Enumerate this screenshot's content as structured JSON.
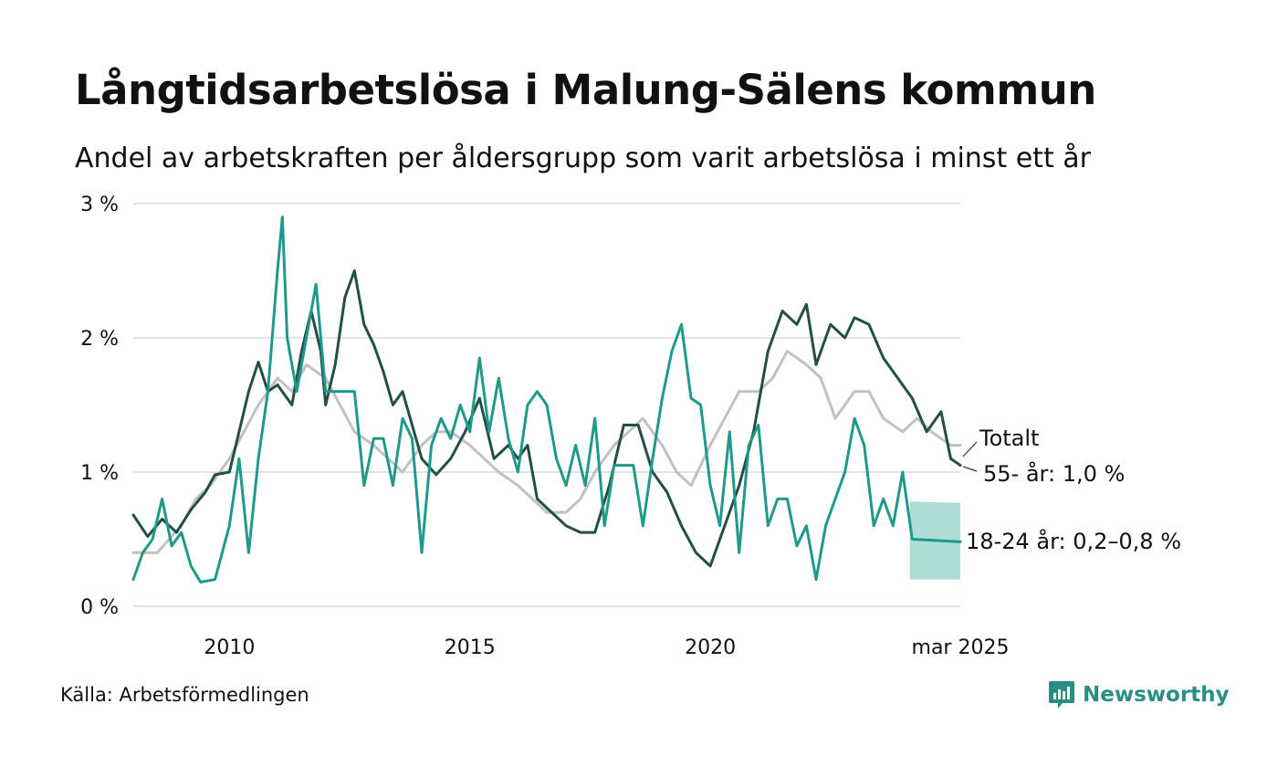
{
  "header": {
    "title": "Långtidsarbetslösa i Malung-Sälens kommun",
    "subtitle": "Andel av arbetskraften per åldersgrupp som varit arbetslösa i minst ett år"
  },
  "footer": {
    "source": "Källa: Arbetsförmedlingen",
    "brand": "Newsworthy"
  },
  "colors": {
    "totalt": "#c2bfc9",
    "age55": "#234f45",
    "age1824": "#1f9a8a",
    "band": "#9fd7cf",
    "grid": "#e3e3e3",
    "brand": "#2a8f83"
  },
  "chart_data": {
    "type": "line",
    "xlim": [
      2008.0,
      2025.2
    ],
    "ylim": [
      0,
      3
    ],
    "y_ticks": [
      0,
      1,
      2,
      3
    ],
    "y_tick_labels": [
      "0 %",
      "1 %",
      "2 %",
      "3 %"
    ],
    "x_ticks": [
      2010,
      2015,
      2020,
      2025.2
    ],
    "x_tick_labels": [
      "2010",
      "2015",
      "2020",
      "mar 2025"
    ],
    "grid": true,
    "series": [
      {
        "key": "totalt",
        "name": "Totalt",
        "points": [
          [
            2008.0,
            0.4
          ],
          [
            2008.5,
            0.4
          ],
          [
            2009.0,
            0.6
          ],
          [
            2009.3,
            0.8
          ],
          [
            2009.6,
            0.9
          ],
          [
            2010.0,
            1.1
          ],
          [
            2010.3,
            1.3
          ],
          [
            2010.6,
            1.5
          ],
          [
            2011.0,
            1.7
          ],
          [
            2011.3,
            1.6
          ],
          [
            2011.6,
            1.8
          ],
          [
            2012.0,
            1.7
          ],
          [
            2012.3,
            1.5
          ],
          [
            2012.6,
            1.3
          ],
          [
            2013.0,
            1.2
          ],
          [
            2013.3,
            1.1
          ],
          [
            2013.6,
            1.0
          ],
          [
            2014.0,
            1.2
          ],
          [
            2014.3,
            1.3
          ],
          [
            2014.6,
            1.3
          ],
          [
            2015.0,
            1.2
          ],
          [
            2015.3,
            1.1
          ],
          [
            2015.6,
            1.0
          ],
          [
            2016.0,
            0.9
          ],
          [
            2016.3,
            0.8
          ],
          [
            2016.6,
            0.7
          ],
          [
            2017.0,
            0.7
          ],
          [
            2017.3,
            0.8
          ],
          [
            2017.6,
            1.0
          ],
          [
            2018.0,
            1.2
          ],
          [
            2018.3,
            1.3
          ],
          [
            2018.6,
            1.4
          ],
          [
            2019.0,
            1.2
          ],
          [
            2019.3,
            1.0
          ],
          [
            2019.6,
            0.9
          ],
          [
            2020.0,
            1.2
          ],
          [
            2020.3,
            1.4
          ],
          [
            2020.6,
            1.6
          ],
          [
            2021.0,
            1.6
          ],
          [
            2021.3,
            1.7
          ],
          [
            2021.6,
            1.9
          ],
          [
            2022.0,
            1.8
          ],
          [
            2022.3,
            1.7
          ],
          [
            2022.6,
            1.4
          ],
          [
            2023.0,
            1.6
          ],
          [
            2023.3,
            1.6
          ],
          [
            2023.6,
            1.4
          ],
          [
            2024.0,
            1.3
          ],
          [
            2024.3,
            1.4
          ],
          [
            2024.6,
            1.3
          ],
          [
            2025.0,
            1.2
          ],
          [
            2025.2,
            1.2
          ]
        ]
      },
      {
        "key": "age55",
        "name": "55- år",
        "points": [
          [
            2008.0,
            0.68
          ],
          [
            2008.3,
            0.52
          ],
          [
            2008.6,
            0.65
          ],
          [
            2008.9,
            0.55
          ],
          [
            2009.2,
            0.72
          ],
          [
            2009.5,
            0.85
          ],
          [
            2009.7,
            0.98
          ],
          [
            2010.0,
            1.0
          ],
          [
            2010.2,
            1.3
          ],
          [
            2010.4,
            1.6
          ],
          [
            2010.6,
            1.82
          ],
          [
            2010.8,
            1.6
          ],
          [
            2011.0,
            1.65
          ],
          [
            2011.3,
            1.5
          ],
          [
            2011.5,
            1.9
          ],
          [
            2011.7,
            2.2
          ],
          [
            2011.9,
            1.9
          ],
          [
            2012.0,
            1.5
          ],
          [
            2012.2,
            1.8
          ],
          [
            2012.4,
            2.3
          ],
          [
            2012.6,
            2.5
          ],
          [
            2012.8,
            2.1
          ],
          [
            2013.0,
            1.95
          ],
          [
            2013.2,
            1.75
          ],
          [
            2013.4,
            1.5
          ],
          [
            2013.6,
            1.6
          ],
          [
            2013.8,
            1.35
          ],
          [
            2014.0,
            1.1
          ],
          [
            2014.3,
            0.98
          ],
          [
            2014.6,
            1.1
          ],
          [
            2014.9,
            1.3
          ],
          [
            2015.2,
            1.55
          ],
          [
            2015.5,
            1.1
          ],
          [
            2015.8,
            1.2
          ],
          [
            2016.0,
            1.1
          ],
          [
            2016.2,
            1.2
          ],
          [
            2016.4,
            0.8
          ],
          [
            2016.7,
            0.7
          ],
          [
            2017.0,
            0.6
          ],
          [
            2017.3,
            0.55
          ],
          [
            2017.6,
            0.55
          ],
          [
            2017.9,
            0.9
          ],
          [
            2018.2,
            1.35
          ],
          [
            2018.5,
            1.35
          ],
          [
            2018.8,
            1.0
          ],
          [
            2019.1,
            0.85
          ],
          [
            2019.4,
            0.6
          ],
          [
            2019.7,
            0.4
          ],
          [
            2020.0,
            0.3
          ],
          [
            2020.3,
            0.6
          ],
          [
            2020.6,
            0.9
          ],
          [
            2020.9,
            1.3
          ],
          [
            2021.2,
            1.9
          ],
          [
            2021.5,
            2.2
          ],
          [
            2021.8,
            2.1
          ],
          [
            2022.0,
            2.25
          ],
          [
            2022.2,
            1.8
          ],
          [
            2022.5,
            2.1
          ],
          [
            2022.8,
            2.0
          ],
          [
            2023.0,
            2.15
          ],
          [
            2023.3,
            2.1
          ],
          [
            2023.6,
            1.85
          ],
          [
            2023.9,
            1.7
          ],
          [
            2024.2,
            1.55
          ],
          [
            2024.5,
            1.3
          ],
          [
            2024.8,
            1.45
          ],
          [
            2025.0,
            1.1
          ],
          [
            2025.2,
            1.05
          ]
        ]
      },
      {
        "key": "age1824",
        "name": "18-24 år",
        "points": [
          [
            2008.0,
            0.2
          ],
          [
            2008.2,
            0.4
          ],
          [
            2008.4,
            0.5
          ],
          [
            2008.6,
            0.8
          ],
          [
            2008.8,
            0.45
          ],
          [
            2009.0,
            0.55
          ],
          [
            2009.2,
            0.3
          ],
          [
            2009.4,
            0.18
          ],
          [
            2009.7,
            0.2
          ],
          [
            2010.0,
            0.6
          ],
          [
            2010.2,
            1.1
          ],
          [
            2010.4,
            0.4
          ],
          [
            2010.6,
            1.1
          ],
          [
            2010.8,
            1.6
          ],
          [
            2011.0,
            2.5
          ],
          [
            2011.1,
            2.9
          ],
          [
            2011.2,
            2.0
          ],
          [
            2011.4,
            1.6
          ],
          [
            2011.6,
            2.0
          ],
          [
            2011.8,
            2.4
          ],
          [
            2012.0,
            1.6
          ],
          [
            2012.2,
            1.6
          ],
          [
            2012.4,
            1.6
          ],
          [
            2012.6,
            1.6
          ],
          [
            2012.8,
            0.9
          ],
          [
            2013.0,
            1.25
          ],
          [
            2013.2,
            1.25
          ],
          [
            2013.4,
            0.9
          ],
          [
            2013.6,
            1.4
          ],
          [
            2013.8,
            1.25
          ],
          [
            2014.0,
            0.4
          ],
          [
            2014.2,
            1.2
          ],
          [
            2014.4,
            1.4
          ],
          [
            2014.6,
            1.25
          ],
          [
            2014.8,
            1.5
          ],
          [
            2015.0,
            1.3
          ],
          [
            2015.2,
            1.85
          ],
          [
            2015.4,
            1.3
          ],
          [
            2015.6,
            1.7
          ],
          [
            2015.8,
            1.25
          ],
          [
            2016.0,
            1.0
          ],
          [
            2016.2,
            1.5
          ],
          [
            2016.4,
            1.6
          ],
          [
            2016.6,
            1.5
          ],
          [
            2016.8,
            1.1
          ],
          [
            2017.0,
            0.9
          ],
          [
            2017.2,
            1.2
          ],
          [
            2017.4,
            0.9
          ],
          [
            2017.6,
            1.4
          ],
          [
            2017.8,
            0.6
          ],
          [
            2018.0,
            1.05
          ],
          [
            2018.2,
            1.05
          ],
          [
            2018.4,
            1.05
          ],
          [
            2018.6,
            0.6
          ],
          [
            2018.8,
            1.1
          ],
          [
            2019.0,
            1.55
          ],
          [
            2019.2,
            1.9
          ],
          [
            2019.4,
            2.1
          ],
          [
            2019.6,
            1.55
          ],
          [
            2019.8,
            1.5
          ],
          [
            2020.0,
            0.9
          ],
          [
            2020.2,
            0.6
          ],
          [
            2020.4,
            1.3
          ],
          [
            2020.6,
            0.4
          ],
          [
            2020.8,
            1.2
          ],
          [
            2021.0,
            1.35
          ],
          [
            2021.2,
            0.6
          ],
          [
            2021.4,
            0.8
          ],
          [
            2021.6,
            0.8
          ],
          [
            2021.8,
            0.45
          ],
          [
            2022.0,
            0.6
          ],
          [
            2022.2,
            0.2
          ],
          [
            2022.4,
            0.6
          ],
          [
            2022.6,
            0.8
          ],
          [
            2022.8,
            1.0
          ],
          [
            2023.0,
            1.4
          ],
          [
            2023.2,
            1.2
          ],
          [
            2023.4,
            0.6
          ],
          [
            2023.6,
            0.8
          ],
          [
            2023.8,
            0.6
          ],
          [
            2024.0,
            1.0
          ],
          [
            2024.2,
            0.5
          ],
          [
            2025.2,
            0.48
          ]
        ]
      }
    ],
    "uncertainty_band": {
      "series": "age1824",
      "x_start": 2024.15,
      "x_end": 2025.2,
      "y_low": [
        0.2,
        0.2
      ],
      "y_high": [
        0.78,
        0.77
      ]
    },
    "labels": {
      "totalt": "Totalt",
      "age55": "55- år: 1,0 %",
      "age1824": "18-24 år: 0,2–0,8 %"
    }
  }
}
